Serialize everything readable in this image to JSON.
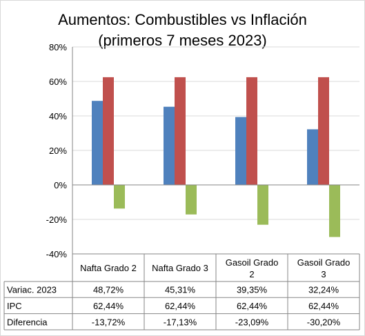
{
  "chart_data": {
    "type": "bar",
    "title_lines": [
      "Aumentos: Combustibles vs Inflación",
      "(primeros 7 meses 2023)"
    ],
    "categories": [
      "Nafta Grado 2",
      "Nafta Grado 3",
      "Gasoil Grado 2",
      "Gasoil Grado 3"
    ],
    "category_lines": [
      [
        "Nafta Grado 2"
      ],
      [
        "Nafta Grado 3"
      ],
      [
        "Gasoil Grado",
        "2"
      ],
      [
        "Gasoil Grado",
        "3"
      ]
    ],
    "series": [
      {
        "name": "Variac. 2023",
        "values": [
          48.72,
          45.31,
          39.35,
          32.24
        ],
        "labels": [
          "48,72%",
          "45,31%",
          "39,35%",
          "32,24%"
        ],
        "color": "#4F81BD"
      },
      {
        "name": "IPC",
        "values": [
          62.44,
          62.44,
          62.44,
          62.44
        ],
        "labels": [
          "62,44%",
          "62,44%",
          "62,44%",
          "62,44%"
        ],
        "color": "#C0504D"
      },
      {
        "name": "Diferencia",
        "values": [
          -13.72,
          -17.13,
          -23.09,
          -30.2
        ],
        "labels": [
          "-13,72%",
          "-17,13%",
          "-23,09%",
          "-30,20%"
        ],
        "color": "#9BBB59"
      }
    ],
    "ylim": [
      -40,
      80
    ],
    "yticks": [
      80,
      60,
      40,
      20,
      0,
      -20,
      -40
    ],
    "ytick_labels": [
      "80%",
      "60%",
      "40%",
      "20%",
      "0%",
      "-20%",
      "-40%"
    ],
    "grid": true,
    "legend": "data-table"
  }
}
